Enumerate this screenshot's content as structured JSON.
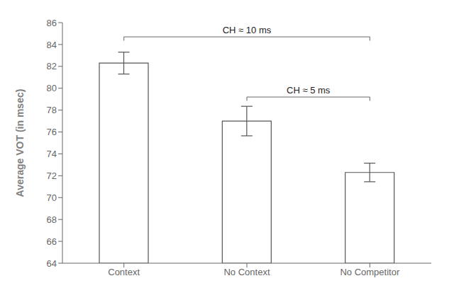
{
  "chart_data": {
    "type": "bar",
    "categories": [
      "Context",
      "No Context",
      "No Competitor"
    ],
    "values": [
      82.3,
      77.0,
      72.3
    ],
    "errors": [
      1.0,
      1.35,
      0.85
    ],
    "color": "#ffffff",
    "ylabel": "Average VOT (in msec)",
    "ylim": [
      64,
      86
    ],
    "yticks": [
      64,
      66,
      68,
      70,
      72,
      74,
      76,
      78,
      80,
      82,
      84,
      86
    ],
    "grid": false,
    "annotations": [
      {
        "text": "CH ≈ 10 ms",
        "from": "Context",
        "to": "No Competitor",
        "y": 84.7
      },
      {
        "text": "CH ≈ 5 ms",
        "from": "No Context",
        "to": "No Competitor",
        "y": 79.2
      }
    ]
  }
}
